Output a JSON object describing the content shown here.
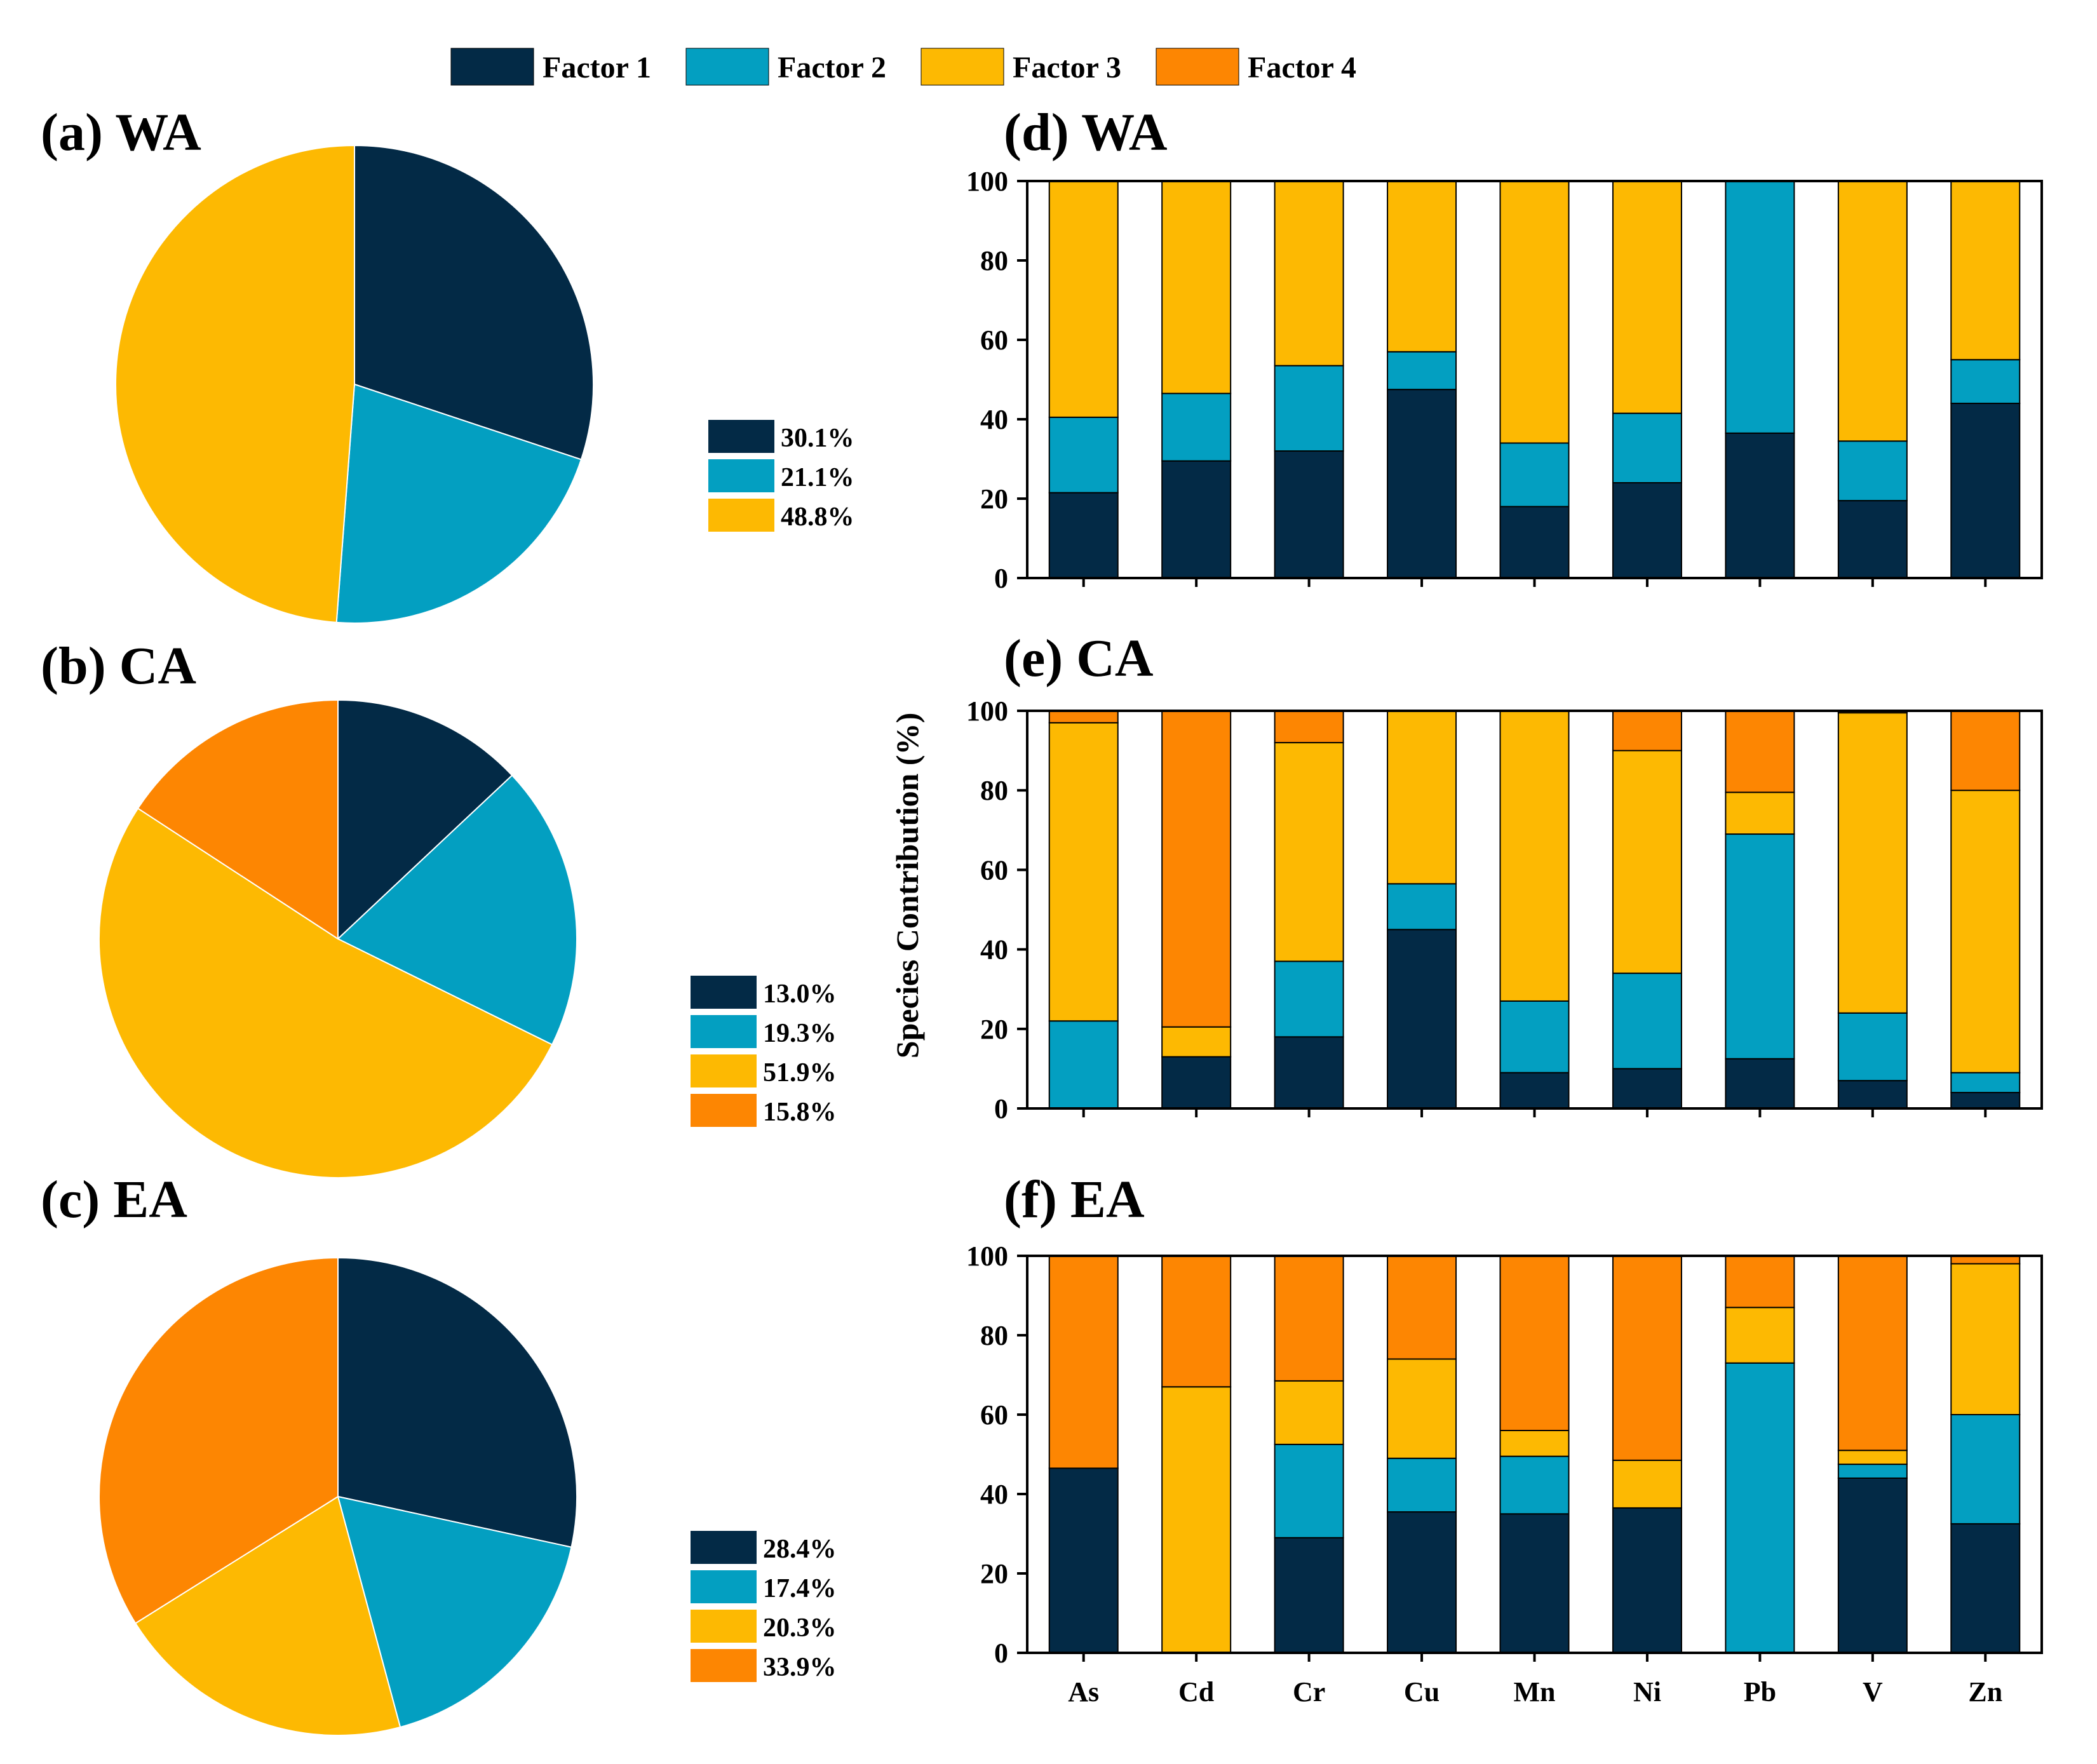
{
  "colors": {
    "factor1": "#032a46",
    "factor2": "#039fc1",
    "factor3": "#fdb902",
    "factor4": "#fd8602",
    "axis": "#000000"
  },
  "chart_data": {
    "type": "composite",
    "legend": [
      "Factor 1",
      "Factor 2",
      "Factor 3",
      "Factor 4"
    ],
    "pies": [
      {
        "id": "a",
        "title": "(a) WA",
        "type": "pie",
        "slices": [
          {
            "factor": "Factor 1",
            "value": 30.1,
            "label": "30.1%"
          },
          {
            "factor": "Factor 2",
            "value": 21.1,
            "label": "21.1%"
          },
          {
            "factor": "Factor 3",
            "value": 48.8,
            "label": "48.8%"
          }
        ]
      },
      {
        "id": "b",
        "title": "(b) CA",
        "type": "pie",
        "slices": [
          {
            "factor": "Factor 1",
            "value": 13.0,
            "label": "13.0%"
          },
          {
            "factor": "Factor 2",
            "value": 19.3,
            "label": "19.3%"
          },
          {
            "factor": "Factor 3",
            "value": 51.9,
            "label": "51.9%"
          },
          {
            "factor": "Factor 4",
            "value": 15.8,
            "label": "15.8%"
          }
        ]
      },
      {
        "id": "c",
        "title": "(c) EA",
        "type": "pie",
        "slices": [
          {
            "factor": "Factor 1",
            "value": 28.4,
            "label": "28.4%"
          },
          {
            "factor": "Factor 2",
            "value": 17.4,
            "label": "17.4%"
          },
          {
            "factor": "Factor 3",
            "value": 20.3,
            "label": "20.3%"
          },
          {
            "factor": "Factor 4",
            "value": 33.9,
            "label": "33.9%"
          }
        ]
      }
    ],
    "bars": {
      "type": "bar",
      "stacked": true,
      "ylabel": "Species Contribution (%)",
      "ylim": [
        0,
        100
      ],
      "yticks": [
        "0",
        "20",
        "40",
        "60",
        "80",
        "100"
      ],
      "categories": [
        "As",
        "Cd",
        "Cr",
        "Cu",
        "Mn",
        "Ni",
        "Pb",
        "V",
        "Zn"
      ],
      "panels": [
        {
          "id": "d",
          "title": "(d) WA",
          "series": [
            {
              "name": "Factor 1",
              "values": [
                21.5,
                29.5,
                32,
                47.5,
                18,
                24,
                36.5,
                19.5,
                44
              ]
            },
            {
              "name": "Factor 2",
              "values": [
                19,
                17,
                21.5,
                9.5,
                16,
                17.5,
                63.5,
                15,
                11
              ]
            },
            {
              "name": "Factor 3",
              "values": [
                59.5,
                53.5,
                46.5,
                43,
                66,
                58.5,
                0,
                65.5,
                45
              ]
            }
          ]
        },
        {
          "id": "e",
          "title": "(e) CA",
          "series": [
            {
              "name": "Factor 1",
              "values": [
                0,
                13,
                18,
                45,
                9,
                10,
                12.5,
                7,
                4
              ]
            },
            {
              "name": "Factor 2",
              "values": [
                22,
                0,
                19,
                11.5,
                18,
                24,
                56.5,
                17,
                5
              ]
            },
            {
              "name": "Factor 3",
              "values": [
                75,
                7.5,
                55,
                43.5,
                73,
                56,
                10.5,
                75.5,
                71
              ]
            },
            {
              "name": "Factor 4",
              "values": [
                3,
                79.5,
                8,
                0,
                0,
                10,
                20.5,
                0.5,
                20
              ]
            }
          ]
        },
        {
          "id": "f",
          "title": "(f) EA",
          "series": [
            {
              "name": "Factor 1",
              "values": [
                46.5,
                0,
                29,
                35.5,
                35,
                36.5,
                0,
                44,
                32.5
              ]
            },
            {
              "name": "Factor 2",
              "values": [
                0,
                0,
                23.5,
                13.5,
                14.5,
                0,
                73,
                3.5,
                27.5
              ]
            },
            {
              "name": "Factor 3",
              "values": [
                0,
                67,
                16,
                25,
                6.5,
                12,
                14,
                3.5,
                38
              ]
            },
            {
              "name": "Factor 4",
              "values": [
                53.5,
                33,
                31.5,
                26,
                44,
                51.5,
                13,
                49,
                2
              ]
            }
          ]
        }
      ]
    }
  }
}
